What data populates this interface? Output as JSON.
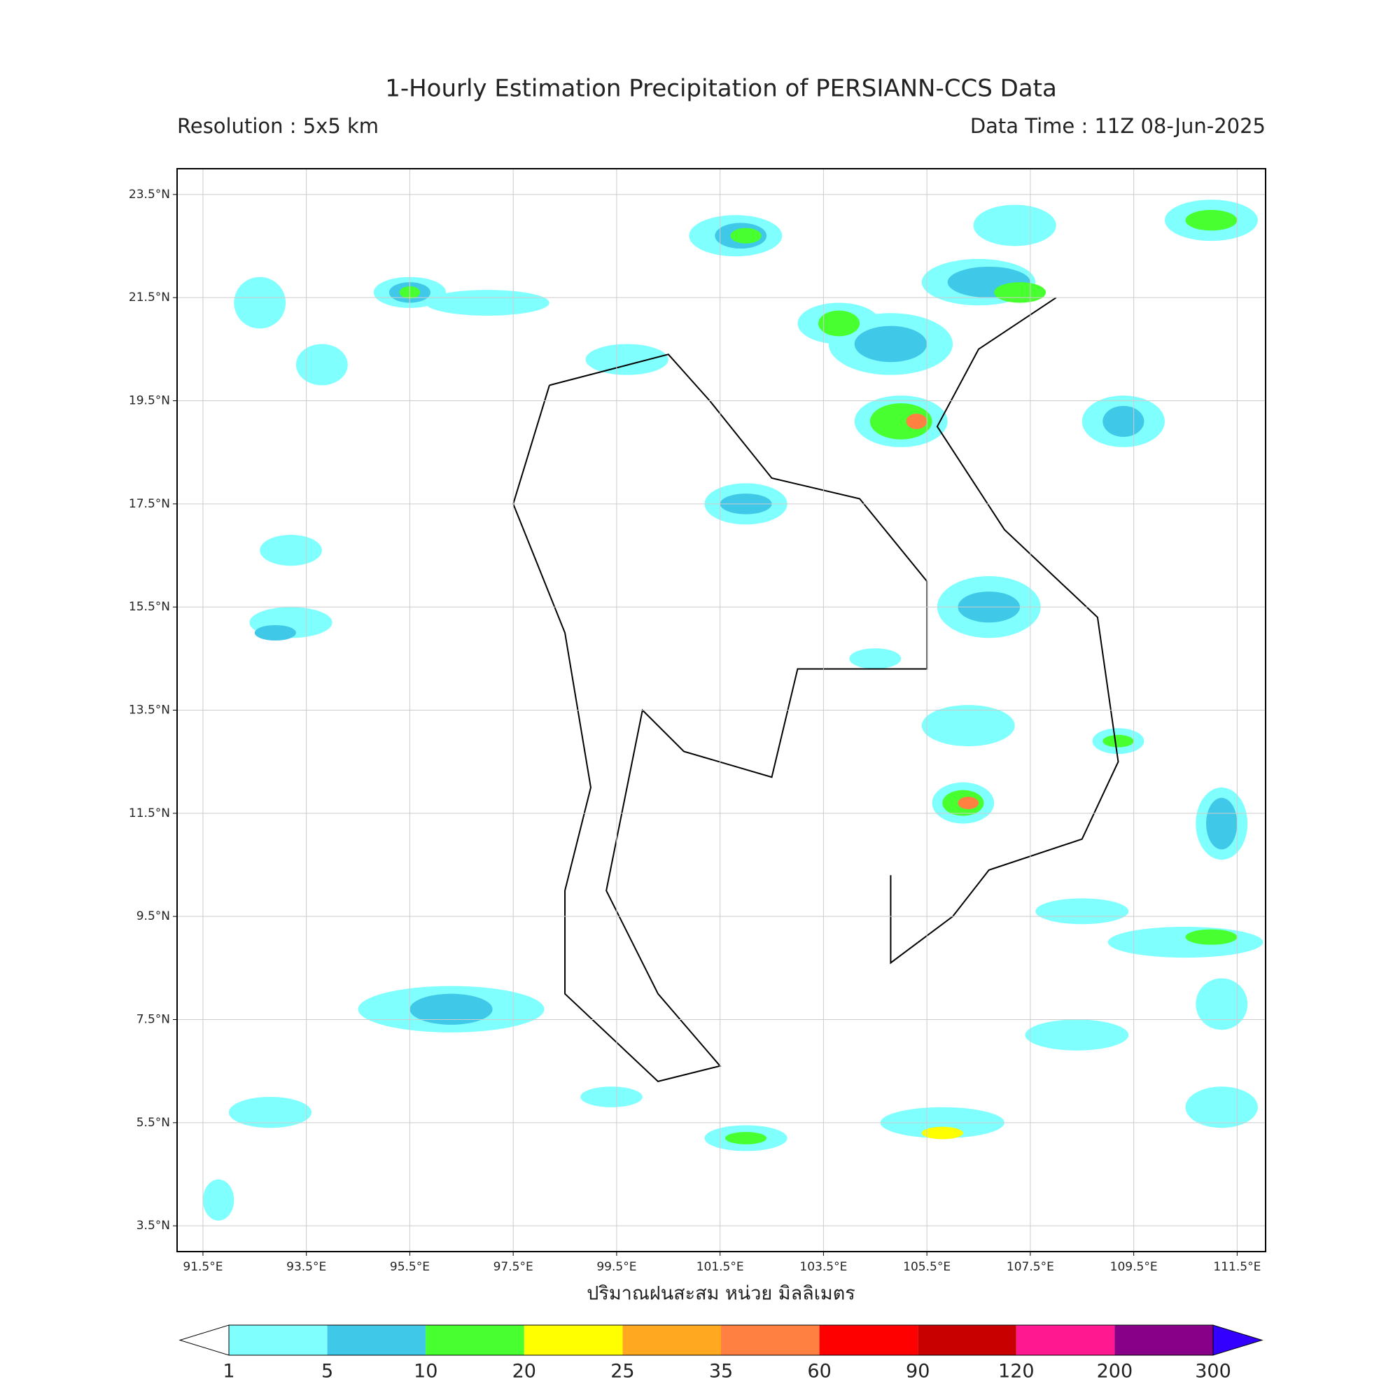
{
  "chart_data": {
    "type": "map",
    "title": "1-Hourly Estimation Precipitation of PERSIANN-CCS Data",
    "subtitle_left": "Resolution : 5x5 km",
    "subtitle_right": "Data Time : 11Z 08-Jun-2025",
    "xlabel": "ปริมาณฝนสะสม หน่วย มิลลิเมตร",
    "xlim": [
      91.0,
      112.05
    ],
    "ylim": [
      3.0,
      24.0
    ],
    "xticks": [
      {
        "value": 91.5,
        "label": "91.5°E"
      },
      {
        "value": 93.5,
        "label": "93.5°E"
      },
      {
        "value": 95.5,
        "label": "95.5°E"
      },
      {
        "value": 97.5,
        "label": "97.5°E"
      },
      {
        "value": 99.5,
        "label": "99.5°E"
      },
      {
        "value": 101.5,
        "label": "101.5°E"
      },
      {
        "value": 103.5,
        "label": "103.5°E"
      },
      {
        "value": 105.5,
        "label": "105.5°E"
      },
      {
        "value": 107.5,
        "label": "107.5°E"
      },
      {
        "value": 109.5,
        "label": "109.5°E"
      },
      {
        "value": 111.5,
        "label": "111.5°E"
      }
    ],
    "yticks": [
      {
        "value": 23.5,
        "label": "23.5°N"
      },
      {
        "value": 21.5,
        "label": "21.5°N"
      },
      {
        "value": 19.5,
        "label": "19.5°N"
      },
      {
        "value": 17.5,
        "label": "17.5°N"
      },
      {
        "value": 15.5,
        "label": "15.5°N"
      },
      {
        "value": 13.5,
        "label": "13.5°N"
      },
      {
        "value": 11.5,
        "label": "11.5°N"
      },
      {
        "value": 9.5,
        "label": "9.5°N"
      },
      {
        "value": 7.5,
        "label": "7.5°N"
      },
      {
        "value": 5.5,
        "label": "5.5°N"
      },
      {
        "value": 3.5,
        "label": "3.5°N"
      }
    ],
    "grid": true,
    "colorbar": {
      "levels": [
        1,
        5,
        10,
        20,
        25,
        35,
        60,
        90,
        120,
        200,
        300
      ],
      "colors": [
        "#80ffff",
        "#40c8e8",
        "#48ff30",
        "#ffff00",
        "#ffa820",
        "#ff8040",
        "#ff0000",
        "#c80000",
        "#ff1890",
        "#880088"
      ],
      "under_color": "#ffffff",
      "over_color": "#3300ff"
    }
  }
}
